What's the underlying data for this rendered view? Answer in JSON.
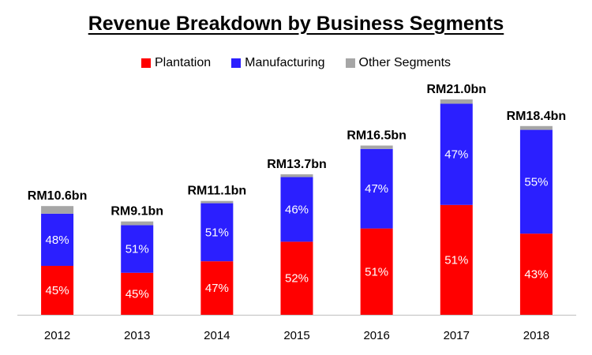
{
  "chart_data": {
    "type": "bar",
    "stacked": true,
    "title": "Revenue Breakdown by Business Segments",
    "xlabel": "",
    "ylabel": "",
    "categories": [
      "2012",
      "2013",
      "2014",
      "2015",
      "2016",
      "2017",
      "2018"
    ],
    "totals": [
      10.6,
      9.1,
      11.1,
      13.7,
      16.5,
      21.0,
      18.4
    ],
    "total_labels": [
      "RM10.6bn",
      "RM9.1bn",
      "RM11.1bn",
      "RM13.7bn",
      "RM16.5bn",
      "RM21.0bn",
      "RM18.4bn"
    ],
    "unit": "RM billion",
    "legend_position": "top-center",
    "grid": false,
    "series": [
      {
        "name": "Plantation",
        "color": "#ff0000",
        "percent": [
          45,
          45,
          47,
          52,
          51,
          51,
          43
        ],
        "labels": [
          "45%",
          "45%",
          "47%",
          "52%",
          "51%",
          "51%",
          "43%"
        ]
      },
      {
        "name": "Manufacturing",
        "color": "#2b1fff",
        "percent": [
          48,
          51,
          51,
          46,
          47,
          47,
          55
        ],
        "labels": [
          "48%",
          "51%",
          "51%",
          "46%",
          "47%",
          "47%",
          "55%"
        ]
      },
      {
        "name": "Other Segments",
        "color": "#a6a6a6",
        "percent": [
          7,
          4,
          2,
          2,
          2,
          2,
          2
        ],
        "labels": [
          "",
          "",
          "",
          "",
          "",
          "",
          ""
        ]
      }
    ]
  }
}
